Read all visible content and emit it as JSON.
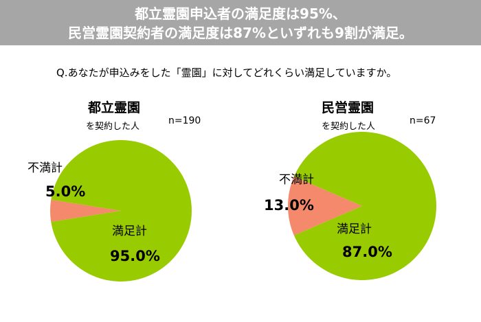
{
  "header": {
    "line1": "都立霊園申込者の満足度は95%、",
    "line2": "民営霊園契約者の満足度は87%といずれも9割が満足。"
  },
  "question": "Q.あなたが申込みをした「霊園」に対してどれくらい満足していますか。",
  "colors": {
    "satisfied": "#99cc00",
    "unsatisfied": "#f4896b",
    "header_bg": "#a6a6a6"
  },
  "chart_data": [
    {
      "type": "pie",
      "title": "都立霊園",
      "subtitle": "を契約した人",
      "n_label": "n=190",
      "slices": [
        {
          "name": "不満計",
          "value": 5.0,
          "label": "5.0%",
          "color": "#f4896b"
        },
        {
          "name": "満足計",
          "value": 95.0,
          "label": "95.0%",
          "color": "#99cc00"
        }
      ]
    },
    {
      "type": "pie",
      "title": "民営霊園",
      "subtitle": "を契約した人",
      "n_label": "n=67",
      "slices": [
        {
          "name": "不満計",
          "value": 13.0,
          "label": "13.0%",
          "color": "#f4896b"
        },
        {
          "name": "満足計",
          "value": 87.0,
          "label": "87.0%",
          "color": "#99cc00"
        }
      ]
    }
  ]
}
